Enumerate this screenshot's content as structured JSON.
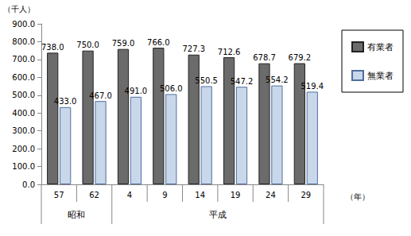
{
  "chart_data": {
    "type": "bar",
    "y_label": "（千人）",
    "x_label": "（年）",
    "categories": [
      "57",
      "62",
      "4",
      "9",
      "14",
      "19",
      "24",
      "29"
    ],
    "groups": [
      {
        "label": "昭和",
        "categories": [
          "57",
          "62"
        ]
      },
      {
        "label": "平成",
        "categories": [
          "4",
          "9",
          "14",
          "19",
          "24",
          "29"
        ]
      }
    ],
    "series": [
      {
        "name": "有業者",
        "color": "#6b6b6b",
        "values": [
          738.0,
          750.0,
          759.0,
          766.0,
          727.3,
          712.6,
          678.7,
          679.2
        ],
        "value_labels": [
          "738.0",
          "750.0",
          "759.0",
          "766.0",
          "727.3",
          "712.6",
          "678.7",
          "679.2"
        ]
      },
      {
        "name": "無業者",
        "color": "#c9d7ea",
        "values": [
          433.0,
          467.0,
          491.0,
          506.0,
          550.5,
          547.2,
          554.2,
          519.4
        ],
        "value_labels": [
          "433.0",
          "467.0",
          "491.0",
          "506.0",
          "550.5",
          "547.2",
          "554.2",
          "519.4"
        ]
      }
    ],
    "ylim": [
      0,
      900
    ],
    "yticks": [
      {
        "value": 0,
        "label": "0.0"
      },
      {
        "value": 100,
        "label": "100.0"
      },
      {
        "value": 200,
        "label": "200.0"
      },
      {
        "value": 300,
        "label": "300.0"
      },
      {
        "value": 400,
        "label": "400.0"
      },
      {
        "value": 500,
        "label": "500.0"
      },
      {
        "value": 600,
        "label": "600.0"
      },
      {
        "value": 700,
        "label": "700.0"
      },
      {
        "value": 800,
        "label": "800.0"
      },
      {
        "value": 900,
        "label": "900.0"
      }
    ],
    "grid": false,
    "legend": "right",
    "data_labels": true
  }
}
